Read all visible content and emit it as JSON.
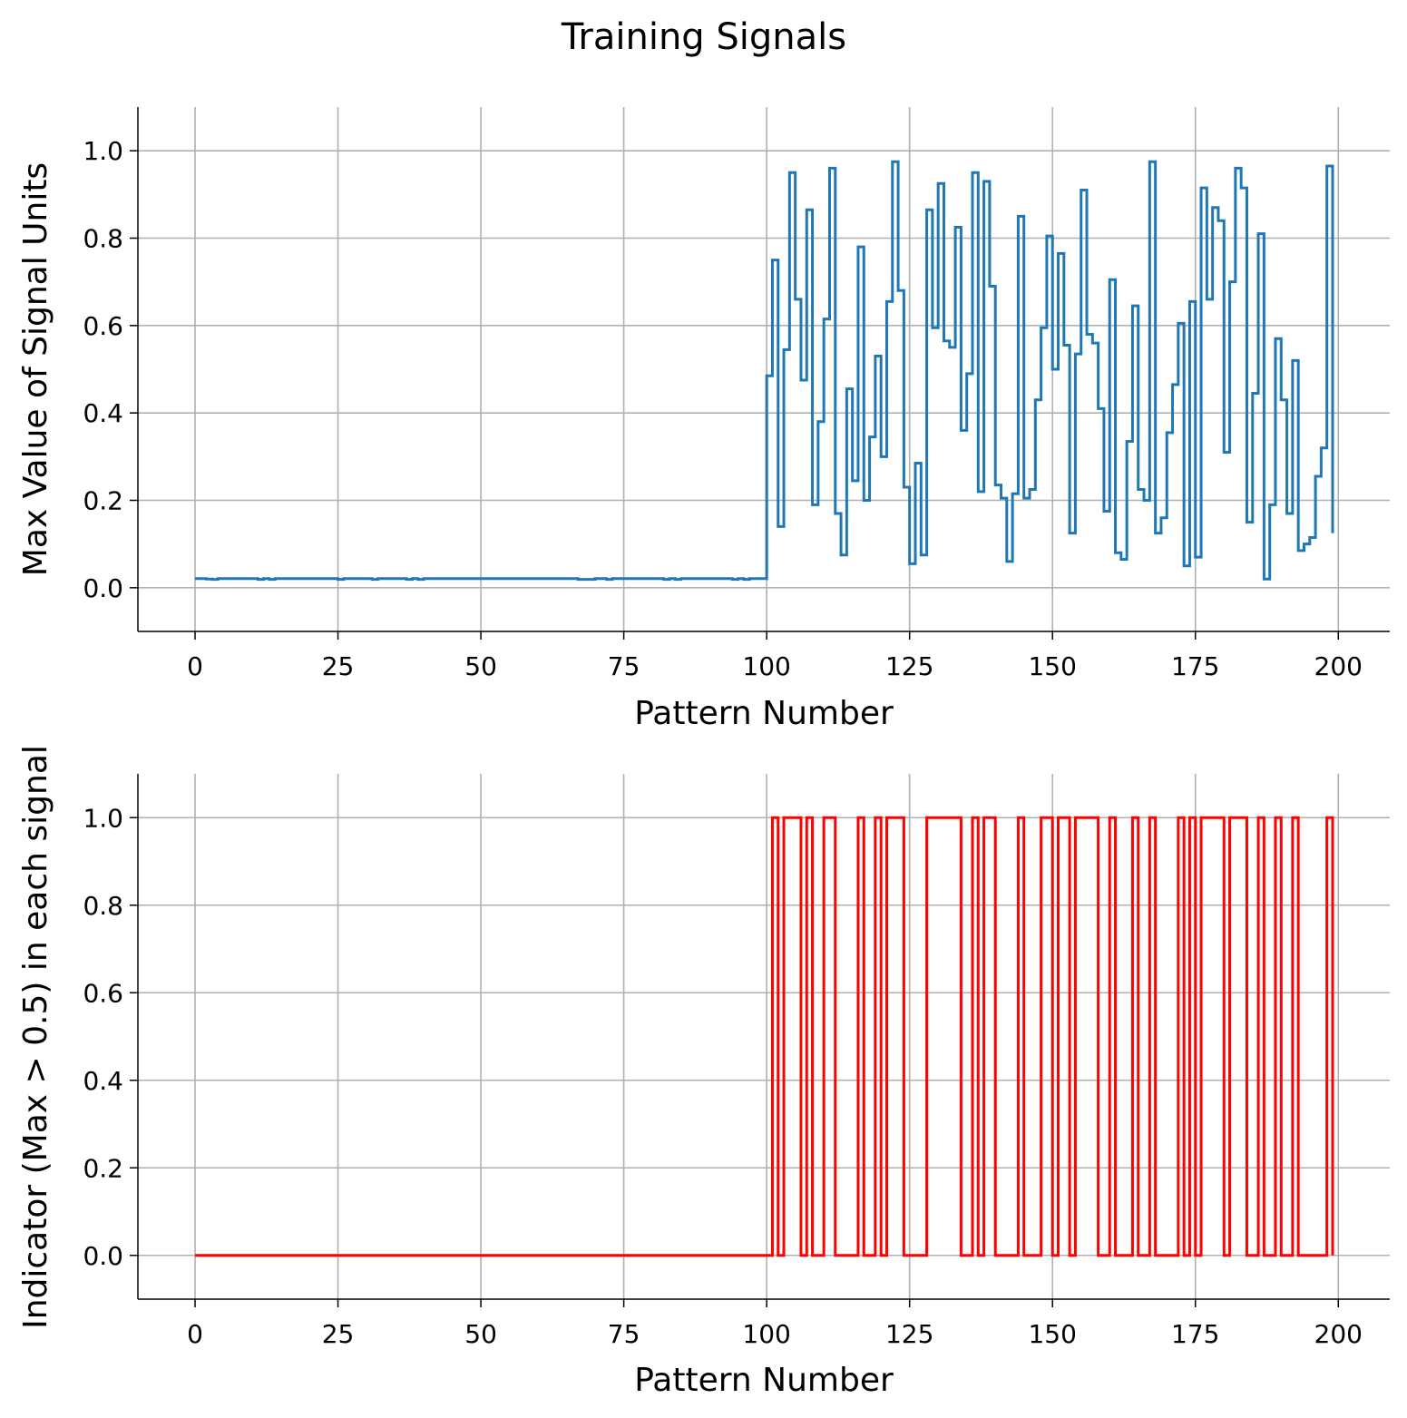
{
  "figure_title": "Training Signals",
  "chart_data": [
    {
      "type": "line",
      "step": "post",
      "title": "",
      "xlabel": "Pattern Number",
      "ylabel": "Max Value of Signal Units",
      "xlim": [
        -10,
        209
      ],
      "ylim": [
        -0.1,
        1.1
      ],
      "xticks": [
        "0",
        "25",
        "50",
        "75",
        "100",
        "125",
        "150",
        "175",
        "200"
      ],
      "yticks": [
        "0.0",
        "0.2",
        "0.4",
        "0.6",
        "0.8",
        "1.0"
      ],
      "grid": true,
      "color": "#1f77b4",
      "x_start": 0,
      "values": [
        0.021,
        0.021,
        0.02,
        0.019,
        0.021,
        0.021,
        0.021,
        0.021,
        0.021,
        0.021,
        0.021,
        0.019,
        0.021,
        0.019,
        0.021,
        0.021,
        0.021,
        0.021,
        0.021,
        0.021,
        0.021,
        0.021,
        0.021,
        0.021,
        0.021,
        0.019,
        0.021,
        0.021,
        0.021,
        0.021,
        0.021,
        0.019,
        0.021,
        0.021,
        0.021,
        0.021,
        0.021,
        0.019,
        0.021,
        0.019,
        0.021,
        0.021,
        0.021,
        0.021,
        0.021,
        0.021,
        0.021,
        0.021,
        0.021,
        0.021,
        0.021,
        0.021,
        0.021,
        0.021,
        0.021,
        0.021,
        0.021,
        0.021,
        0.021,
        0.021,
        0.021,
        0.021,
        0.021,
        0.021,
        0.021,
        0.021,
        0.021,
        0.019,
        0.019,
        0.019,
        0.021,
        0.021,
        0.019,
        0.021,
        0.021,
        0.021,
        0.021,
        0.021,
        0.021,
        0.021,
        0.021,
        0.021,
        0.019,
        0.021,
        0.019,
        0.021,
        0.021,
        0.021,
        0.021,
        0.021,
        0.021,
        0.021,
        0.021,
        0.021,
        0.019,
        0.021,
        0.019,
        0.021,
        0.021,
        0.021,
        0.485,
        0.75,
        0.14,
        0.545,
        0.95,
        0.66,
        0.475,
        0.865,
        0.19,
        0.38,
        0.615,
        0.96,
        0.17,
        0.075,
        0.455,
        0.245,
        0.78,
        0.2,
        0.345,
        0.53,
        0.3,
        0.655,
        0.975,
        0.68,
        0.23,
        0.055,
        0.285,
        0.075,
        0.865,
        0.595,
        0.925,
        0.565,
        0.55,
        0.825,
        0.36,
        0.49,
        0.95,
        0.22,
        0.93,
        0.69,
        0.235,
        0.205,
        0.06,
        0.215,
        0.85,
        0.205,
        0.225,
        0.43,
        0.595,
        0.805,
        0.5,
        0.765,
        0.555,
        0.125,
        0.535,
        0.91,
        0.58,
        0.56,
        0.41,
        0.175,
        0.705,
        0.08,
        0.065,
        0.335,
        0.645,
        0.225,
        0.2,
        0.975,
        0.125,
        0.16,
        0.355,
        0.465,
        0.605,
        0.05,
        0.655,
        0.07,
        0.915,
        0.66,
        0.87,
        0.84,
        0.31,
        0.7,
        0.96,
        0.915,
        0.15,
        0.445,
        0.81,
        0.02,
        0.19,
        0.57,
        0.43,
        0.17,
        0.52,
        0.085,
        0.1,
        0.115,
        0.255,
        0.32,
        0.965,
        0.125
      ]
    },
    {
      "type": "line",
      "step": "post",
      "title": "",
      "xlabel": "Pattern Number",
      "ylabel": "Indicator (Max > 0.5) in each signal",
      "xlim": [
        -10,
        209
      ],
      "ylim": [
        -0.1,
        1.1
      ],
      "xticks": [
        "0",
        "25",
        "50",
        "75",
        "100",
        "125",
        "150",
        "175",
        "200"
      ],
      "yticks": [
        "0.0",
        "0.2",
        "0.4",
        "0.6",
        "0.8",
        "1.0"
      ],
      "grid": true,
      "color": "#ff0000",
      "x_start": 0,
      "threshold": 0.5
    }
  ]
}
